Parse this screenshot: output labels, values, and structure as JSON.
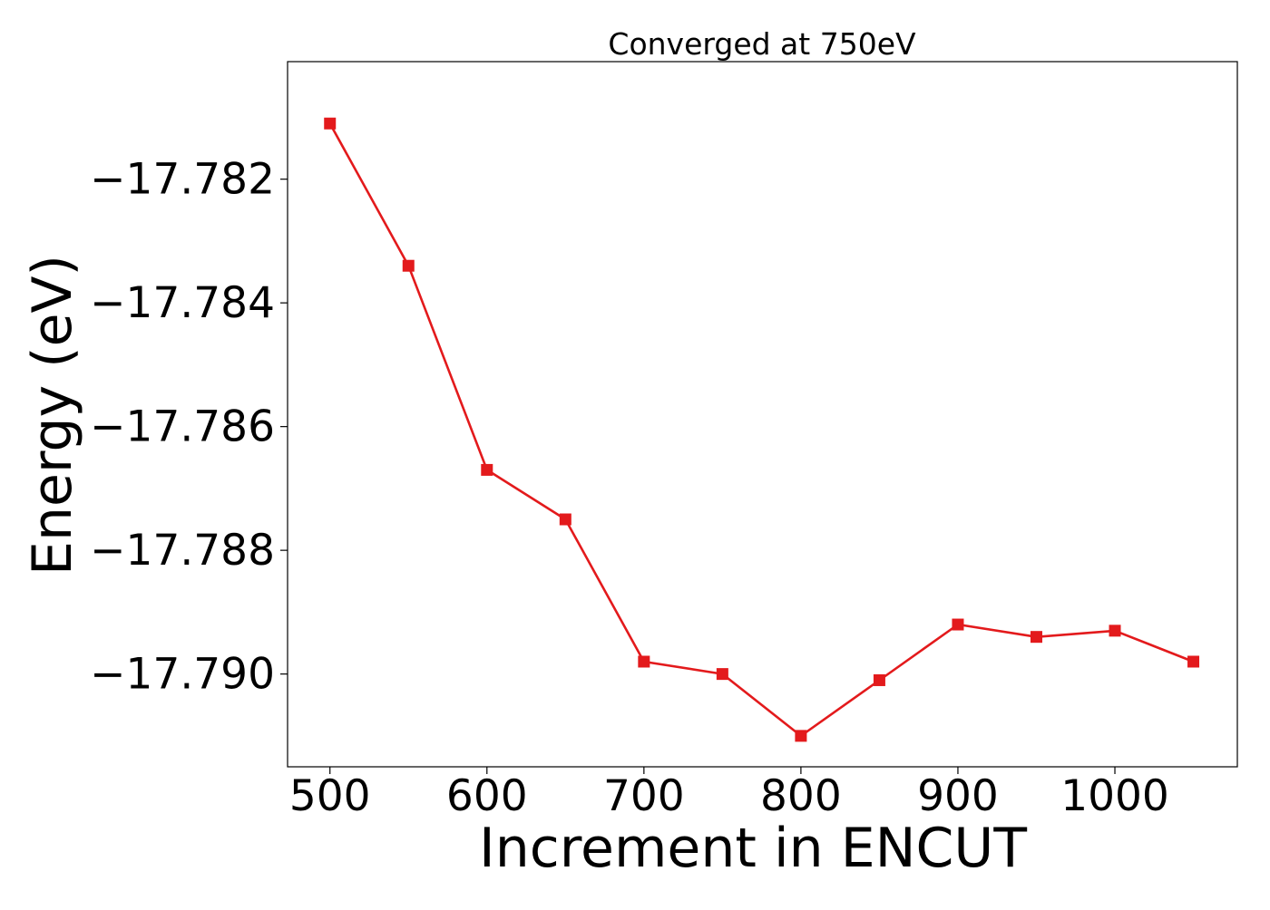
{
  "chart_data": {
    "type": "line",
    "title": "Converged at 750eV",
    "xlabel": "Increment in ENCUT",
    "ylabel": "Energy (eV)",
    "xlim": [
      473,
      1078
    ],
    "ylim": [
      -17.7915,
      -17.7801
    ],
    "x_ticks": [
      500,
      600,
      700,
      800,
      900,
      1000
    ],
    "y_ticks": [
      -17.782,
      -17.784,
      -17.786,
      -17.788,
      -17.79
    ],
    "x_tick_labels": [
      "500",
      "600",
      "700",
      "800",
      "900",
      "1000"
    ],
    "y_tick_labels": [
      "−17.782",
      "−17.784",
      "−17.786",
      "−17.788",
      "−17.790"
    ],
    "grid": false,
    "series": [
      {
        "color": "#e31a1c",
        "marker": "square",
        "x": [
          500,
          550,
          600,
          650,
          700,
          750,
          800,
          850,
          900,
          950,
          1000,
          1050
        ],
        "y": [
          -17.7811,
          -17.7834,
          -17.7867,
          -17.7875,
          -17.7898,
          -17.79,
          -17.791,
          -17.7901,
          -17.7892,
          -17.7894,
          -17.7893,
          -17.7898
        ]
      }
    ]
  }
}
